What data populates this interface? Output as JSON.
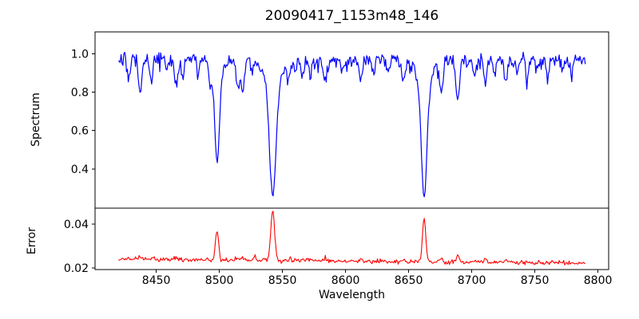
{
  "figure": {
    "background": "#ffffff",
    "spine_color": "#000000",
    "text_color": "#000000"
  },
  "chart_data": {
    "type": "line",
    "title": "20090417_1153m48_146",
    "xlabel": "Wavelength",
    "grid": false,
    "legend": null,
    "xlim": [
      8401.5,
      8808.5
    ],
    "xticks": [
      8450,
      8500,
      8550,
      8600,
      8650,
      8700,
      8750,
      8800
    ],
    "xtick_labels": [
      "8450",
      "8500",
      "8550",
      "8600",
      "8650",
      "8700",
      "8750",
      "8800"
    ],
    "x_start": 8420,
    "x_end": 8790,
    "n_points": 520,
    "seed": 7,
    "panels": [
      {
        "name": "spectrum",
        "ylabel": "Spectrum",
        "line_color": "#0000ff",
        "ylim": [
          0.196,
          1.114
        ],
        "ytick_values": [
          0.4,
          0.6,
          0.8,
          1.0
        ],
        "ytick_labels": [
          "0.4",
          "0.6",
          "0.8",
          "1.0"
        ],
        "continuum": 0.971,
        "noise_sigma": 0.018,
        "dip_probability": 0.1,
        "dip_max_depth": 0.055,
        "absorption_lines": [
          {
            "center": 8428.0,
            "depth": 0.1,
            "sigma": 1.2
          },
          {
            "center": 8437.0,
            "depth": 0.19,
            "sigma": 1.3
          },
          {
            "center": 8446.0,
            "depth": 0.12,
            "sigma": 1.2
          },
          {
            "center": 8458.0,
            "depth": 0.06,
            "sigma": 1.0
          },
          {
            "center": 8466.0,
            "depth": 0.14,
            "sigma": 1.4
          },
          {
            "center": 8471.0,
            "depth": 0.1,
            "sigma": 1.0
          },
          {
            "center": 8483.0,
            "depth": 0.07,
            "sigma": 1.0
          },
          {
            "center": 8493.0,
            "depth": 0.1,
            "sigma": 1.0
          },
          {
            "center": 8498.2,
            "depth": 0.47,
            "sigma": 1.8
          },
          {
            "center": 8498.2,
            "depth": 0.07,
            "sigma": 5.0
          },
          {
            "center": 8514.5,
            "depth": 0.16,
            "sigma": 1.1
          },
          {
            "center": 8518.5,
            "depth": 0.17,
            "sigma": 1.2
          },
          {
            "center": 8526.0,
            "depth": 0.06,
            "sigma": 1.0
          },
          {
            "center": 8542.3,
            "depth": 0.6,
            "sigma": 2.6
          },
          {
            "center": 8542.3,
            "depth": 0.1,
            "sigma": 7.0
          },
          {
            "center": 8555.0,
            "depth": 0.09,
            "sigma": 1.1
          },
          {
            "center": 8560.0,
            "depth": 0.07,
            "sigma": 1.0
          },
          {
            "center": 8566.0,
            "depth": 0.1,
            "sigma": 1.2
          },
          {
            "center": 8572.0,
            "depth": 0.08,
            "sigma": 1.0
          },
          {
            "center": 8584.0,
            "depth": 0.11,
            "sigma": 1.3
          },
          {
            "center": 8598.0,
            "depth": 0.07,
            "sigma": 1.0
          },
          {
            "center": 8612.0,
            "depth": 0.11,
            "sigma": 1.2
          },
          {
            "center": 8622.0,
            "depth": 0.07,
            "sigma": 1.0
          },
          {
            "center": 8634.0,
            "depth": 0.06,
            "sigma": 1.0
          },
          {
            "center": 8646.0,
            "depth": 0.11,
            "sigma": 1.3
          },
          {
            "center": 8662.3,
            "depth": 0.6,
            "sigma": 2.2
          },
          {
            "center": 8662.3,
            "depth": 0.12,
            "sigma": 6.0
          },
          {
            "center": 8676.0,
            "depth": 0.17,
            "sigma": 1.3
          },
          {
            "center": 8689.0,
            "depth": 0.21,
            "sigma": 1.5
          },
          {
            "center": 8702.0,
            "depth": 0.1,
            "sigma": 1.2
          },
          {
            "center": 8711.0,
            "depth": 0.11,
            "sigma": 1.1
          },
          {
            "center": 8718.0,
            "depth": 0.07,
            "sigma": 1.0
          },
          {
            "center": 8727.0,
            "depth": 0.12,
            "sigma": 1.2
          },
          {
            "center": 8736.0,
            "depth": 0.06,
            "sigma": 1.0
          },
          {
            "center": 8744.0,
            "depth": 0.1,
            "sigma": 1.1
          },
          {
            "center": 8752.0,
            "depth": 0.06,
            "sigma": 1.0
          },
          {
            "center": 8760.0,
            "depth": 0.1,
            "sigma": 1.1
          },
          {
            "center": 8772.0,
            "depth": 0.07,
            "sigma": 1.0
          },
          {
            "center": 8779.0,
            "depth": 0.09,
            "sigma": 1.1
          }
        ]
      },
      {
        "name": "error",
        "ylabel": "Error",
        "line_color": "#ff0000",
        "ylim": [
          0.0193,
          0.0473
        ],
        "ytick_values": [
          0.02,
          0.04
        ],
        "ytick_labels": [
          "0.02",
          "0.04"
        ],
        "baseline_start": 0.024,
        "baseline_end": 0.0222,
        "noise_sigma": 0.00045,
        "bump_probability": 0.12,
        "bump_max_amp": 0.0012,
        "spikes": [
          {
            "center": 8437.0,
            "amplitude": 0.0012,
            "sigma": 1.5
          },
          {
            "center": 8446.0,
            "amplitude": 0.0008,
            "sigma": 1.2
          },
          {
            "center": 8466.0,
            "amplitude": 0.0009,
            "sigma": 1.3
          },
          {
            "center": 8498.2,
            "amplitude": 0.014,
            "sigma": 1.2
          },
          {
            "center": 8514.5,
            "amplitude": 0.0012,
            "sigma": 1.0
          },
          {
            "center": 8518.5,
            "amplitude": 0.0013,
            "sigma": 1.0
          },
          {
            "center": 8528.0,
            "amplitude": 0.0018,
            "sigma": 0.8
          },
          {
            "center": 8535.0,
            "amplitude": 0.0012,
            "sigma": 0.8
          },
          {
            "center": 8542.3,
            "amplitude": 0.0228,
            "sigma": 1.5
          },
          {
            "center": 8556.0,
            "amplitude": 0.001,
            "sigma": 0.9
          },
          {
            "center": 8566.0,
            "amplitude": 0.0009,
            "sigma": 0.9
          },
          {
            "center": 8584.0,
            "amplitude": 0.001,
            "sigma": 1.0
          },
          {
            "center": 8612.0,
            "amplitude": 0.0008,
            "sigma": 1.0
          },
          {
            "center": 8646.0,
            "amplitude": 0.0009,
            "sigma": 1.0
          },
          {
            "center": 8662.3,
            "amplitude": 0.02,
            "sigma": 1.3
          },
          {
            "center": 8676.0,
            "amplitude": 0.0022,
            "sigma": 1.0
          },
          {
            "center": 8689.0,
            "amplitude": 0.0035,
            "sigma": 1.0
          },
          {
            "center": 8702.0,
            "amplitude": 0.0012,
            "sigma": 0.9
          },
          {
            "center": 8711.0,
            "amplitude": 0.0015,
            "sigma": 0.9
          },
          {
            "center": 8727.0,
            "amplitude": 0.001,
            "sigma": 0.9
          },
          {
            "center": 8744.0,
            "amplitude": 0.0008,
            "sigma": 0.9
          },
          {
            "center": 8770.0,
            "amplitude": 0.0009,
            "sigma": 0.9
          }
        ]
      }
    ]
  }
}
